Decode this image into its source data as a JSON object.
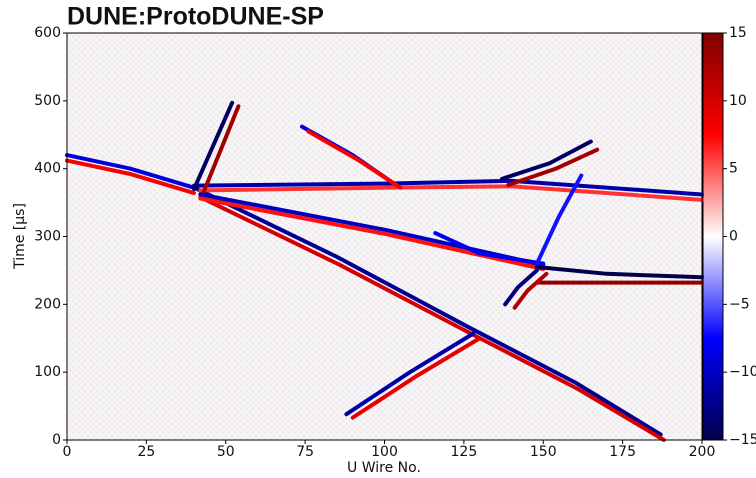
{
  "chart_data": {
    "type": "tracks",
    "title": "DUNE:ProtoDUNE-SP",
    "xlabel": "U Wire No.",
    "ylabel": "Time [μs]",
    "xlim": [
      0,
      200
    ],
    "xticks": [
      0,
      25,
      50,
      75,
      100,
      125,
      150,
      175,
      200
    ],
    "ylim": [
      0,
      600
    ],
    "yticks": [
      0,
      100,
      200,
      300,
      400,
      500,
      600
    ],
    "zlim": [
      -15,
      15
    ],
    "zticks": [
      {
        "value": -15,
        "label": "−15"
      },
      {
        "value": -10,
        "label": "−10"
      },
      {
        "value": -5,
        "label": "−5"
      },
      0,
      5,
      10,
      15
    ],
    "tracks": [
      {
        "x": [
          0,
          20,
          40
        ],
        "y": [
          420,
          400,
          372
        ],
        "value": -9
      },
      {
        "x": [
          0,
          20,
          40
        ],
        "y": [
          412,
          392,
          364
        ],
        "value": 8
      },
      {
        "x": [
          41,
          85,
          127,
          160,
          187
        ],
        "y": [
          370,
          270,
          165,
          85,
          8
        ],
        "value": -12
      },
      {
        "x": [
          42,
          86,
          128,
          161,
          188
        ],
        "y": [
          358,
          258,
          155,
          75,
          0
        ],
        "value": 10
      },
      {
        "x": [
          40,
          100,
          140,
          200
        ],
        "y": [
          375,
          378,
          382,
          362
        ],
        "value": -11
      },
      {
        "x": [
          42,
          100,
          140,
          200
        ],
        "y": [
          368,
          372,
          374,
          354
        ],
        "value": 6
      },
      {
        "x": [
          40,
          52
        ],
        "y": [
          370,
          497
        ],
        "value": -14
      },
      {
        "x": [
          43,
          54
        ],
        "y": [
          365,
          492
        ],
        "value": 13
      },
      {
        "x": [
          42,
          100,
          150
        ],
        "y": [
          362,
          310,
          258
        ],
        "value": -10
      },
      {
        "x": [
          42,
          100,
          150
        ],
        "y": [
          356,
          304,
          252
        ],
        "value": 7
      },
      {
        "x": [
          148,
          170,
          200
        ],
        "y": [
          255,
          245,
          240
        ],
        "value": -15
      },
      {
        "x": [
          148,
          170,
          200
        ],
        "y": [
          232,
          232,
          232
        ],
        "value": 14
      },
      {
        "x": [
          137,
          152,
          165
        ],
        "y": [
          385,
          408,
          440
        ],
        "value": -14
      },
      {
        "x": [
          139,
          154,
          167
        ],
        "y": [
          376,
          400,
          428
        ],
        "value": 13
      },
      {
        "x": [
          88,
          108,
          128
        ],
        "y": [
          38,
          100,
          157
        ],
        "value": -11
      },
      {
        "x": [
          90,
          110,
          130
        ],
        "y": [
          33,
          94,
          150
        ],
        "value": 9
      },
      {
        "x": [
          74,
          90,
          103
        ],
        "y": [
          462,
          420,
          378
        ],
        "value": -9
      },
      {
        "x": [
          76,
          92,
          105
        ],
        "y": [
          455,
          412,
          372
        ],
        "value": 8
      },
      {
        "x": [
          138,
          142,
          148
        ],
        "y": [
          200,
          225,
          250
        ],
        "value": -13
      },
      {
        "x": [
          141,
          145,
          151
        ],
        "y": [
          195,
          220,
          245
        ],
        "value": 12
      },
      {
        "x": [
          116,
          130,
          150
        ],
        "y": [
          305,
          275,
          260
        ],
        "value": -8
      },
      {
        "x": [
          148,
          155,
          162
        ],
        "y": [
          260,
          330,
          390
        ],
        "value": -7
      }
    ]
  }
}
